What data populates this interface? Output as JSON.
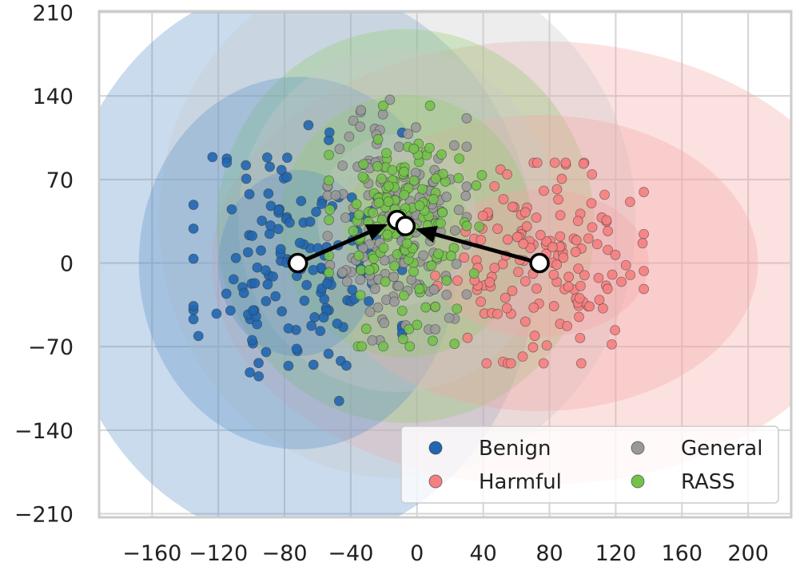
{
  "chart_data": {
    "type": "scatter",
    "title": "",
    "xlabel": "",
    "ylabel": "",
    "xlim": [
      -192,
      226
    ],
    "ylim": [
      -213,
      211
    ],
    "grid": true,
    "x_ticks": [
      {
        "value": -160,
        "label": "−160"
      },
      {
        "value": -120,
        "label": "−120"
      },
      {
        "value": -80,
        "label": "−80"
      },
      {
        "value": -40,
        "label": "−40"
      },
      {
        "value": 0,
        "label": "0"
      },
      {
        "value": 40,
        "label": "40"
      },
      {
        "value": 80,
        "label": "80"
      },
      {
        "value": 120,
        "label": "120"
      },
      {
        "value": 160,
        "label": "160"
      },
      {
        "value": 200,
        "label": "200"
      }
    ],
    "y_ticks": [
      {
        "value": 210,
        "label": "210"
      },
      {
        "value": 140,
        "label": "140"
      },
      {
        "value": 70,
        "label": "70"
      },
      {
        "value": 0,
        "label": "0"
      },
      {
        "value": -70,
        "label": "−70"
      },
      {
        "value": -140,
        "label": "−140"
      },
      {
        "value": -210,
        "label": "−210"
      }
    ],
    "legend": {
      "placement": "bottom-right",
      "columns": 2,
      "entries": [
        "Benign",
        "Harmful",
        "General",
        "RASS"
      ]
    },
    "series": [
      {
        "name": "Benign",
        "color": "#2166b0",
        "ellipse_color": "#5b93c8",
        "center": [
          -72,
          0
        ],
        "std": [
          30,
          55
        ],
        "ellipse_std": [
          48,
          78
        ],
        "count": 150,
        "seed": 11
      },
      {
        "name": "Harmful",
        "color": "#f58080",
        "ellipse_color": "#f6a3a3",
        "center": [
          74,
          0
        ],
        "std": [
          30,
          40
        ],
        "ellipse_std": [
          66,
          62
        ],
        "count": 160,
        "seed": 23
      },
      {
        "name": "General",
        "color": "#999999",
        "ellipse_color": "#c8c8c8",
        "center": [
          -12,
          36
        ],
        "std": [
          20,
          48
        ],
        "ellipse_std": [
          48,
          72
        ],
        "count": 160,
        "seed": 37
      },
      {
        "name": "RASS",
        "color": "#74c14b",
        "ellipse_color": "#93cc6c",
        "center": [
          -7,
          31
        ],
        "std": [
          22,
          48
        ],
        "ellipse_std": [
          38,
          55
        ],
        "count": 150,
        "seed": 53
      }
    ],
    "arrows": [
      {
        "from": [
          -72,
          0
        ],
        "to": [
          -12,
          36
        ]
      },
      {
        "from": [
          74,
          0
        ],
        "to": [
          -7,
          31
        ]
      }
    ],
    "centroids": [
      [
        -72,
        0
      ],
      [
        74,
        0
      ],
      [
        -12,
        36
      ],
      [
        -7,
        31
      ]
    ]
  }
}
